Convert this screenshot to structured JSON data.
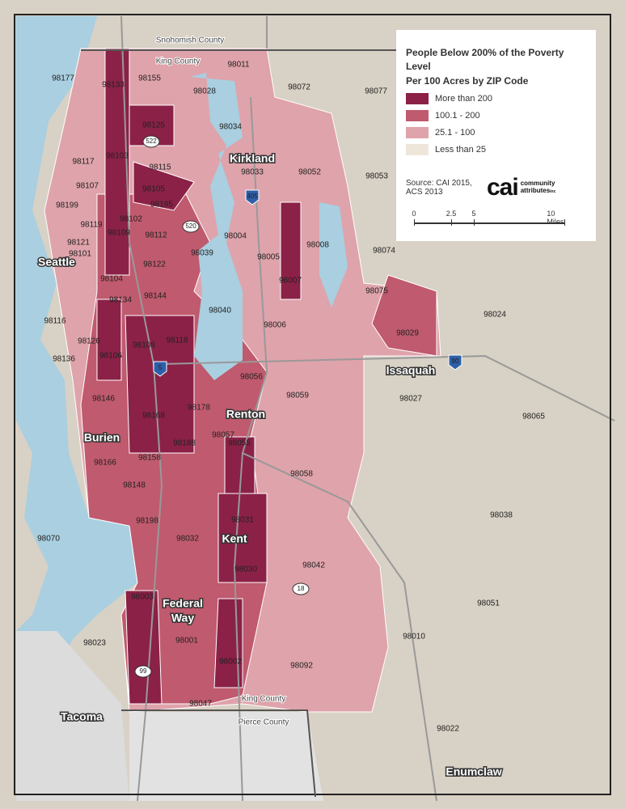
{
  "legend": {
    "title": "People Below 200% of the Poverty Level",
    "subtitle": "Per 100 Acres by ZIP Code",
    "items": [
      {
        "label": "More than 200",
        "color": "#8b2147"
      },
      {
        "label": "100.1 - 200",
        "color": "#c05a6e"
      },
      {
        "label": "25.1 - 100",
        "color": "#dfa3ab"
      },
      {
        "label": "Less than 25",
        "color": "#efe6da"
      }
    ],
    "source": [
      "Source: CAI 2015,",
      "ACS 2013"
    ],
    "logo": {
      "mark": "cai",
      "lines": [
        "community",
        "attributes"
      ],
      "suffix": "inc"
    },
    "scale": [
      "0",
      "2.5",
      "5",
      "10 Miles"
    ]
  },
  "counties": [
    "Snohomish County",
    "King County",
    "King County",
    "Pierce County"
  ],
  "cities": [
    "Seattle",
    "Kirkland",
    "Issaquah",
    "Renton",
    "Burien",
    "Kent",
    "Federal",
    "Way",
    "Tacoma",
    "Enumclaw"
  ],
  "highways": [
    "522",
    "520",
    "405",
    "5",
    "90",
    "18",
    "99"
  ],
  "zips": [
    "98177",
    "98133",
    "98155",
    "98011",
    "98028",
    "98072",
    "98077",
    "98125",
    "98034",
    "98117",
    "98103",
    "98115",
    "98033",
    "98052",
    "98053",
    "98107",
    "98105",
    "98199",
    "98195",
    "98102",
    "98119",
    "98109",
    "98112",
    "98004",
    "98008",
    "98121",
    "98101",
    "98039",
    "98005",
    "98074",
    "98122",
    "98104",
    "98007",
    "98134",
    "98144",
    "98075",
    "98040",
    "98116",
    "98006",
    "98029",
    "98024",
    "98126",
    "98108",
    "98118",
    "98136",
    "98106",
    "98056",
    "98146",
    "98059",
    "98027",
    "98065",
    "98178",
    "98168",
    "98057",
    "98166",
    "98158",
    "98188",
    "98055",
    "98058",
    "98148",
    "98038",
    "98198",
    "98031",
    "98070",
    "98032",
    "98042",
    "98030",
    "98003",
    "98051",
    "98010",
    "98023",
    "98001",
    "98002",
    "98092",
    "98047",
    "98022"
  ]
}
